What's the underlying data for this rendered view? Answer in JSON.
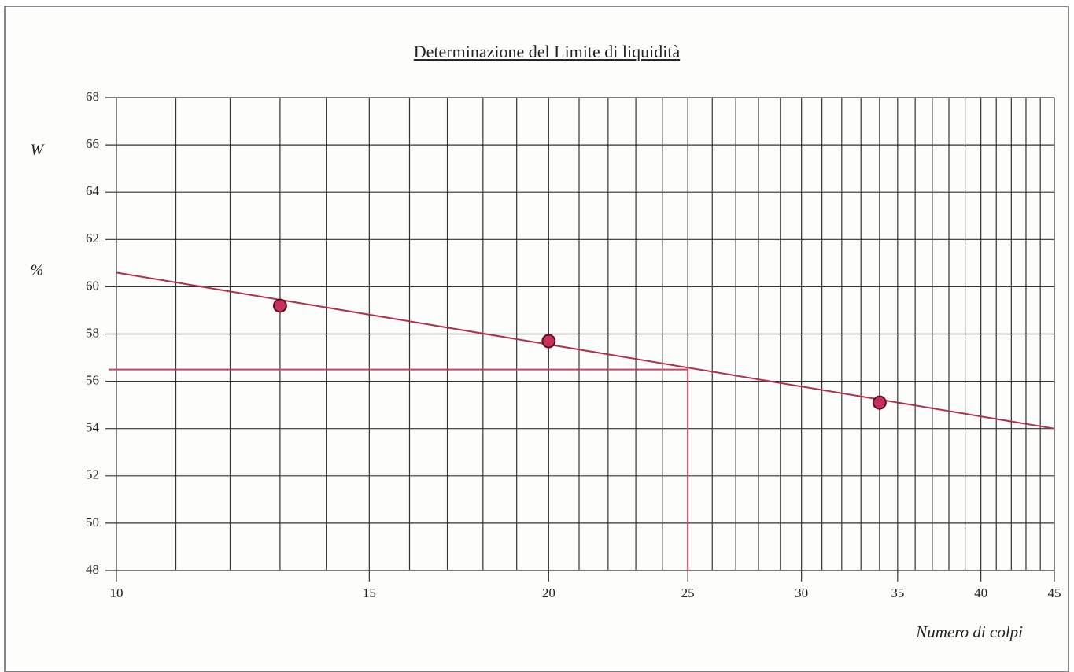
{
  "chart_data": {
    "type": "scatter",
    "title": "Determinazione del Limite di liquidità",
    "xlabel": "Numero di colpi",
    "ylabel": "W",
    "ylabel_unit": "%",
    "xscale": "log",
    "series": [
      {
        "color": "#c8305c",
        "x": [
          13,
          20,
          34
        ],
        "values": [
          59.2,
          57.7,
          55.1
        ]
      }
    ],
    "trendline": {
      "color": "#b0304a",
      "x": [
        10,
        45
      ],
      "values": [
        60.6,
        54.0
      ]
    },
    "liquid_limit": {
      "color": "#d0406a",
      "x": 25,
      "value": 56.5
    },
    "xlim": [
      10,
      45
    ],
    "ylim": [
      48,
      68
    ],
    "xticks": [
      10,
      15,
      20,
      25,
      30,
      35,
      40,
      45
    ],
    "yticks": [
      48,
      50,
      52,
      54,
      56,
      58,
      60,
      62,
      64,
      66,
      68
    ],
    "xgrid": [
      10,
      11,
      12,
      13,
      14,
      15,
      16,
      17,
      18,
      19,
      20,
      21,
      22,
      23,
      24,
      25,
      26,
      27,
      28,
      29,
      30,
      31,
      32,
      33,
      34,
      35,
      36,
      37,
      38,
      39,
      40,
      41,
      42,
      43,
      44,
      45
    ],
    "grid": true
  }
}
